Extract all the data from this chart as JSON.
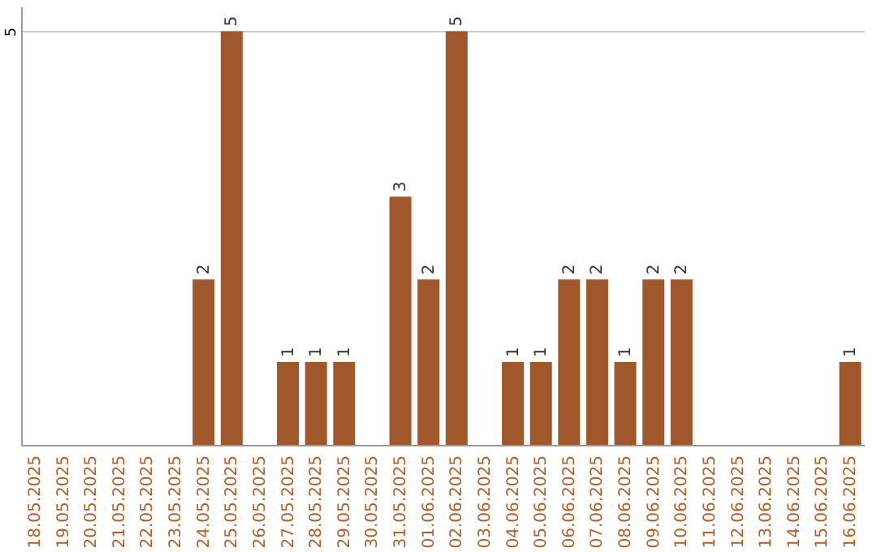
{
  "chart_data": {
    "type": "bar",
    "categories": [
      "18.05.2025",
      "19.05.2025",
      "20.05.2025",
      "21.05.2025",
      "22.05.2025",
      "23.05.2025",
      "24.05.2025",
      "25.05.2025",
      "26.05.2025",
      "27.05.2025",
      "28.05.2025",
      "29.05.2025",
      "30.05.2025",
      "31.05.2025",
      "01.06.2025",
      "02.06.2025",
      "03.06.2025",
      "04.06.2025",
      "05.06.2025",
      "06.06.2025",
      "07.06.2025",
      "08.06.2025",
      "09.06.2025",
      "10.06.2025",
      "11.06.2025",
      "12.06.2025",
      "13.06.2025",
      "14.06.2025",
      "15.06.2025",
      "16.06.2025"
    ],
    "values": [
      0,
      0,
      0,
      0,
      0,
      0,
      2,
      5,
      0,
      1,
      1,
      1,
      0,
      3,
      2,
      5,
      0,
      1,
      1,
      2,
      2,
      1,
      2,
      2,
      0,
      0,
      0,
      0,
      0,
      1
    ],
    "value_labels": [
      null,
      null,
      null,
      null,
      null,
      null,
      "2",
      "5",
      null,
      "1",
      "1",
      "1",
      null,
      "3",
      "2",
      "5",
      null,
      "1",
      "1",
      "2",
      "2",
      "1",
      "2",
      "2",
      null,
      null,
      null,
      null,
      null,
      "1"
    ],
    "color": "#a0572b",
    "ylim": [
      0,
      5.3
    ],
    "yticks": [
      5
    ],
    "grid": "y"
  }
}
